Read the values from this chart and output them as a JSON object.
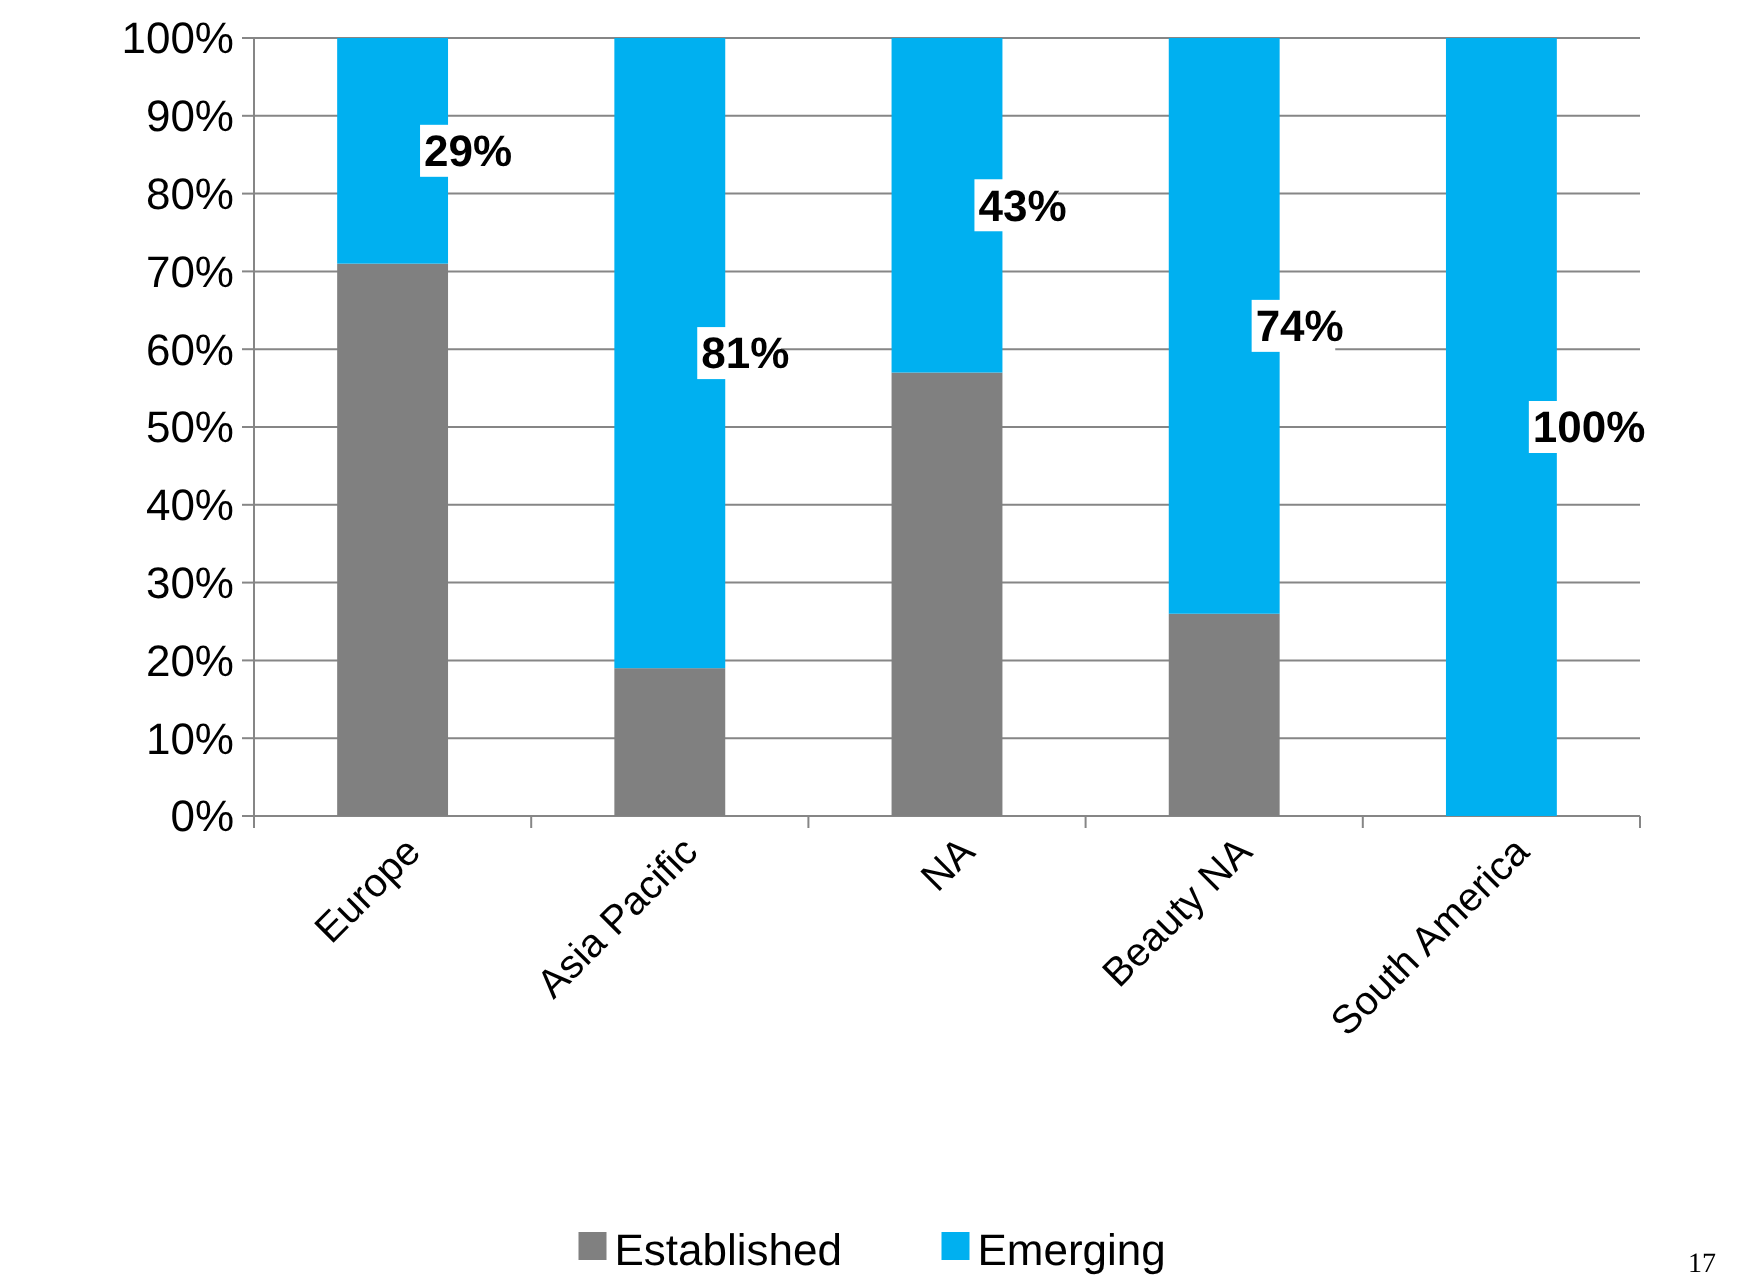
{
  "chart_data": {
    "type": "bar",
    "stacked": true,
    "categories": [
      "Europe",
      "Asia Pacific",
      "NA",
      "Beauty NA",
      "South America"
    ],
    "series": [
      {
        "name": "Established",
        "color": "#808080",
        "values": [
          71,
          19,
          57,
          26,
          0
        ]
      },
      {
        "name": "Emerging",
        "color": "#00b0f0",
        "values": [
          29,
          81,
          43,
          74,
          100
        ],
        "value_labels": [
          "29%",
          "81%",
          "43%",
          "74%",
          "100%"
        ]
      }
    ],
    "ylim": [
      0,
      100
    ],
    "yticks": [
      {
        "value": 0,
        "label": "0%"
      },
      {
        "value": 10,
        "label": "10%"
      },
      {
        "value": 20,
        "label": "20%"
      },
      {
        "value": 30,
        "label": "30%"
      },
      {
        "value": 40,
        "label": "40%"
      },
      {
        "value": 50,
        "label": "50%"
      },
      {
        "value": 60,
        "label": "60%"
      },
      {
        "value": 70,
        "label": "70%"
      },
      {
        "value": 80,
        "label": "80%"
      },
      {
        "value": 90,
        "label": "90%"
      },
      {
        "value": 100,
        "label": "100%"
      }
    ],
    "grid": "y",
    "legend": "bottom",
    "annotations": [
      "17"
    ]
  }
}
